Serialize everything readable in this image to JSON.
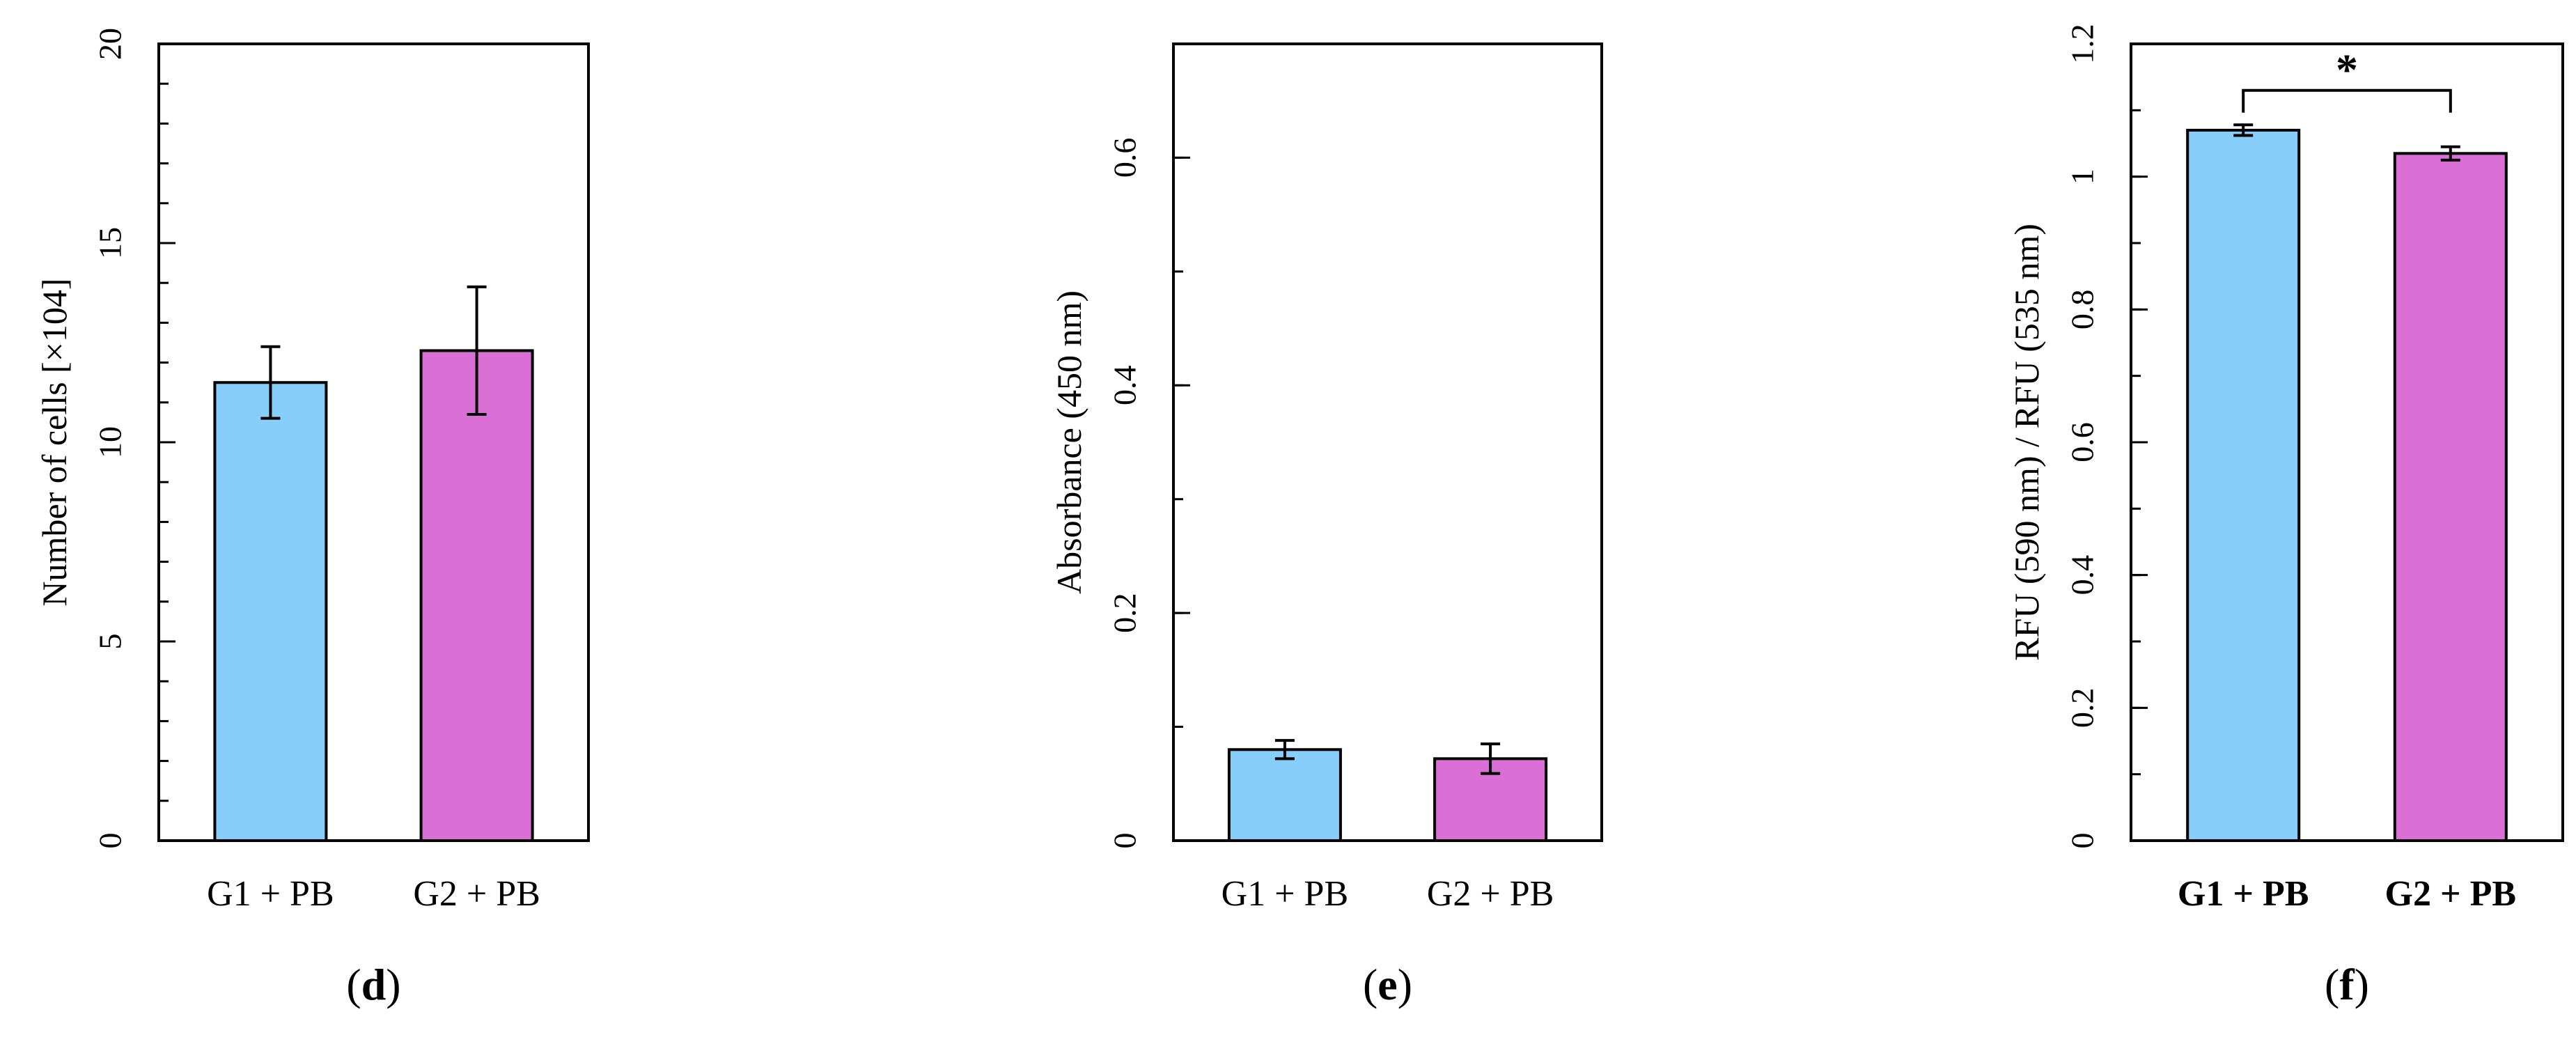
{
  "colors": {
    "g1": "#87CEFA",
    "g2": "#DA70D6",
    "axis": "#000000"
  },
  "chart_data": [
    {
      "type": "bar",
      "categories": [
        "G1 + PB",
        "G2 + PB"
      ],
      "values": [
        11.5,
        12.3
      ],
      "errors": [
        0.9,
        1.6
      ],
      "ylabel": "Number of cells [×104]",
      "ylim": [
        0,
        20
      ],
      "yticks": [
        0,
        5,
        10,
        15,
        20
      ],
      "ytick_labels": [
        "0",
        "5",
        "10",
        "15",
        "20"
      ],
      "minor_step": 1,
      "bold_categories": false,
      "panel_label": {
        "open": "(",
        "letter": "d",
        "close": ")"
      },
      "grid": false
    },
    {
      "type": "bar",
      "categories": [
        "G1 + PB",
        "G2 + PB"
      ],
      "values": [
        0.08,
        0.072
      ],
      "errors": [
        0.008,
        0.013
      ],
      "ylabel": "Absorbance (450 nm)",
      "ylim": [
        0,
        0.7
      ],
      "yticks": [
        0,
        0.2,
        0.4,
        0.6
      ],
      "ytick_labels": [
        "0",
        "0.2",
        "0.4",
        "0.6"
      ],
      "minor_step": 0.1,
      "bold_categories": false,
      "panel_label": {
        "open": "(",
        "letter": "e",
        "close": ")"
      },
      "grid": false
    },
    {
      "type": "bar",
      "categories": [
        "G1 + PB",
        "G2 + PB"
      ],
      "values": [
        1.07,
        1.035
      ],
      "errors": [
        0.008,
        0.01
      ],
      "ylabel": "RFU (590 nm) / RFU (535 nm)",
      "ylim": [
        0,
        1.2
      ],
      "yticks": [
        0,
        0.2,
        0.4,
        0.6,
        0.8,
        1.0,
        1.2
      ],
      "ytick_labels": [
        "0",
        "0.2",
        "0.4",
        "0.6",
        "0.8",
        "1",
        "1.2"
      ],
      "minor_step": 0.1,
      "bold_categories": true,
      "significance": {
        "label": "*",
        "bracket_y": 1.13
      },
      "panel_label": {
        "open": "(",
        "letter": "f",
        "close": ")"
      },
      "grid": false
    }
  ]
}
